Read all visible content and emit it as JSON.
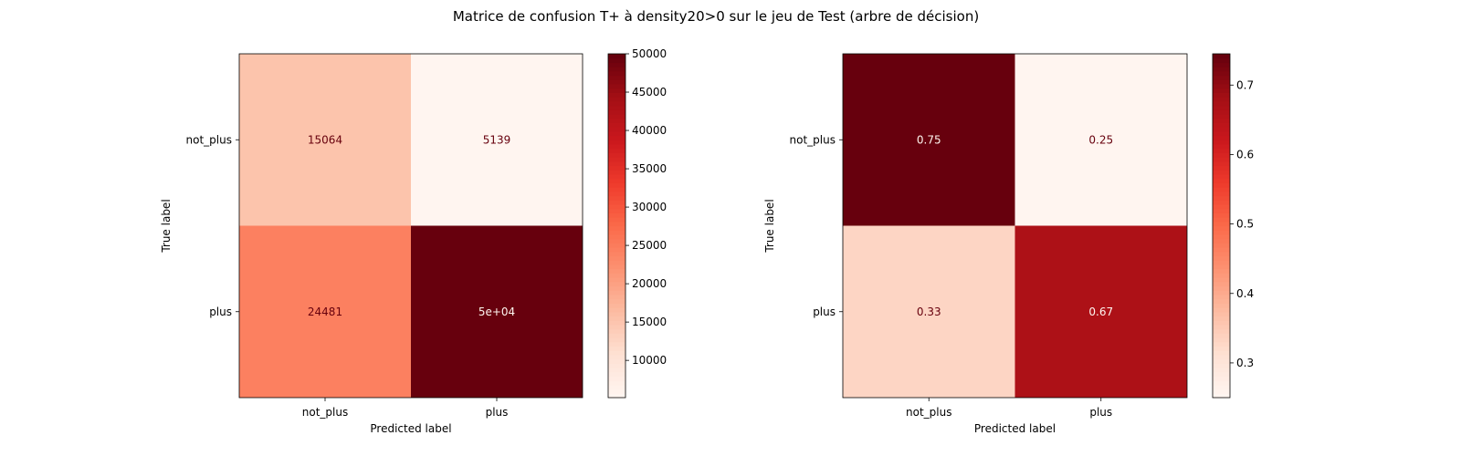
{
  "figure_title": "Matrice de confusion T+ à density20>0 sur le jeu de Test (arbre de décision)",
  "colors": {
    "cmap": [
      "#fff5f0",
      "#fee0d2",
      "#fcbba1",
      "#fc9272",
      "#fb6a4a",
      "#ef3b2c",
      "#cb181d",
      "#a50f15",
      "#67000d"
    ],
    "dark_text": "#67000d",
    "light_text": "#fff5f0"
  },
  "chart_data": [
    {
      "type": "heatmap",
      "xlabel": "Predicted label",
      "ylabel": "True label",
      "x_categories": [
        "not_plus",
        "plus"
      ],
      "y_categories": [
        "not_plus",
        "plus"
      ],
      "values": [
        [
          15064,
          5139
        ],
        [
          24481,
          50000
        ]
      ],
      "cell_labels": [
        [
          "15064",
          "5139"
        ],
        [
          "24481",
          "5e+04"
        ]
      ],
      "colorbar": {
        "vmin": 5139,
        "vmax": 50000,
        "ticks": [
          "10000",
          "15000",
          "20000",
          "25000",
          "30000",
          "35000",
          "40000",
          "45000",
          "50000"
        ]
      }
    },
    {
      "type": "heatmap",
      "xlabel": "Predicted label",
      "ylabel": "True label",
      "x_categories": [
        "not_plus",
        "plus"
      ],
      "y_categories": [
        "not_plus",
        "plus"
      ],
      "values": [
        [
          0.75,
          0.25
        ],
        [
          0.33,
          0.67
        ]
      ],
      "cell_labels": [
        [
          "0.75",
          "0.25"
        ],
        [
          "0.33",
          "0.67"
        ]
      ],
      "colorbar": {
        "vmin": 0.25,
        "vmax": 0.745,
        "ticks": [
          "0.3",
          "0.4",
          "0.5",
          "0.6",
          "0.7"
        ]
      }
    }
  ]
}
